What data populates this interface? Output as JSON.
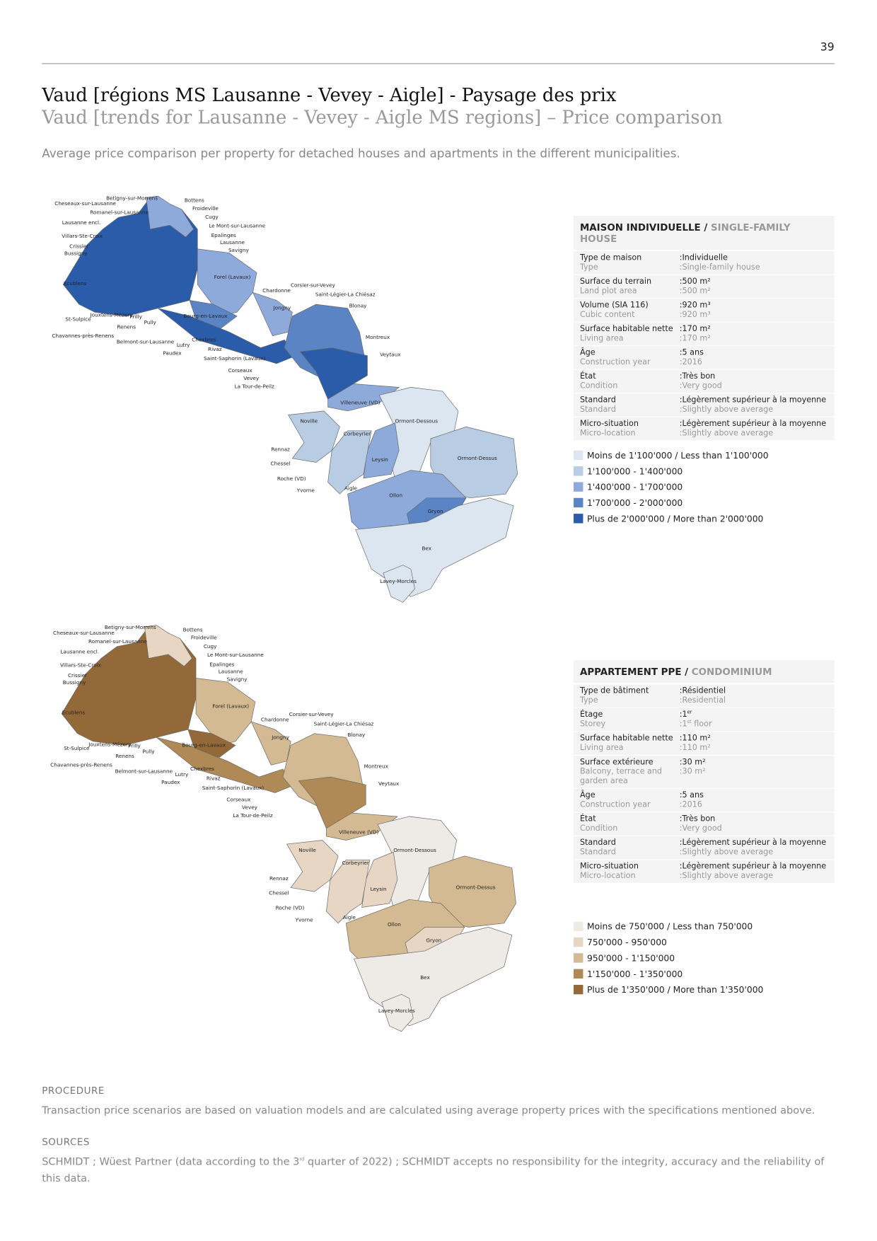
{
  "page_number": "39",
  "title": "Vaud [régions MS Lausanne - Vevey - Aigle] - Paysage des prix",
  "subtitle": "Vaud [trends for Lausanne - Vevey - Aigle MS regions] – Price comparison",
  "intro": "Average price comparison per property for detached houses and apartments in the different municipalities.",
  "municipalities": [
    "Cheseaux-sur-Lausanne",
    "Betigny-sur-Morrens",
    "Bottens",
    "Romanel-sur-Lausanne",
    "Froideville",
    "Cugy",
    "Lausanne encl.",
    "Le Mont-sur-Lausanne",
    "Villars-Ste-Croix",
    "Epalinges",
    "Lausanne",
    "Crissier",
    "Savigny",
    "Bussigny",
    "Forel (Lavaux)",
    "Ecublens",
    "Chardonne",
    "Corsier-sur-Vevey",
    "Saint-Légier-La Chiésaz",
    "Jongny",
    "Blonay",
    "Jouxtens-Mézery",
    "Prilly",
    "St-Sulpice",
    "Pully",
    "Bourg-en-Lavaux",
    "Renens",
    "Montreux",
    "Chavannes-près-Renens",
    "Belmont-sur-Lausanne",
    "Chexbres",
    "Lutry",
    "Rivaz",
    "Paudex",
    "Veytaux",
    "Saint-Saphorin (Lavaux)",
    "Corseaux",
    "Vevey",
    "La Tour-de-Peilz",
    "Villeneuve (VD)",
    "Noville",
    "Ormont-Dessous",
    "Corbeyrier",
    "Rennaz",
    "Leysin",
    "Ormont-Dessus",
    "Chessel",
    "Roche (VD)",
    "Aigle",
    "Yvorne",
    "Ollon",
    "Gryon",
    "Bex",
    "Lavey-Morcles"
  ],
  "maps": [
    {
      "panel": {
        "heading": "MAISON INDIVIDUELLE /",
        "heading_en": "SINGLE-FAMILY HOUSE",
        "rows": [
          {
            "label": "Type de maison",
            "label_en": "Type",
            "value": ":Individuelle",
            "value_en": ":Single-family house"
          },
          {
            "label": "Surface du terrain",
            "label_en": "Land plot area",
            "value": ":500 m²",
            "value_en": ":500 m²"
          },
          {
            "label": "Volume (SIA 116)",
            "label_en": "Cubic content",
            "value": ":920 m³",
            "value_en": ":920 m³"
          },
          {
            "label": "Surface habitable nette",
            "label_en": "Living area",
            "value": ":170 m²",
            "value_en": ":170 m²"
          },
          {
            "label": "Âge",
            "label_en": "Construction year",
            "value": ":5 ans",
            "value_en": ":2016"
          },
          {
            "label": "État",
            "label_en": "Condition",
            "value": ":Très bon",
            "value_en": ":Very good"
          },
          {
            "label": "Standard",
            "label_en": "Standard",
            "value": ":Légèrement supérieur à la moyenne",
            "value_en": ":Slightly above average"
          },
          {
            "label": "Micro-situation",
            "label_en": "Micro-location",
            "value": ":Légèrement supérieur à la moyenne",
            "value_en": ":Slightly above average"
          }
        ]
      },
      "legend": [
        {
          "label": "Moins de 1'100'000 / Less than 1'100'000",
          "color": "#dce6f0"
        },
        {
          "label": "1'100'000 - 1'400'000",
          "color": "#b8cce4"
        },
        {
          "label": "1'400'000 - 1'700'000",
          "color": "#8eaadb"
        },
        {
          "label": "1'700'000 - 2'000'000",
          "color": "#5b84c4"
        },
        {
          "label": "Plus de 2'000'000 / More than 2'000'000",
          "color": "#2a5caa"
        }
      ]
    },
    {
      "panel": {
        "heading": "APPARTEMENT PPE /",
        "heading_en": "CONDOMINIUM",
        "rows": [
          {
            "label": "Type de bâtiment",
            "label_en": "Type",
            "value": ":Résidentiel",
            "value_en": ":Residential"
          },
          {
            "label": "Étage",
            "label_en": "Storey",
            "value": ":1",
            "value_sup": "er",
            "value_en": ":1",
            "value_en_sup": "st",
            "value_en_rest": " floor"
          },
          {
            "label": "Surface habitable nette",
            "label_en": "Living area",
            "value": ":110 m²",
            "value_en": ":110 m²"
          },
          {
            "label": "Surface extérieure",
            "label_en": "Balcony, terrace and garden area",
            "value": ":30 m²",
            "value_en": ":30 m²"
          },
          {
            "label": "Âge",
            "label_en": "Construction year",
            "value": ":5 ans",
            "value_en": ":2016"
          },
          {
            "label": "État",
            "label_en": "Condition",
            "value": ":Très bon",
            "value_en": ":Very good"
          },
          {
            "label": "Standard",
            "label_en": "Standard",
            "value": ":Légèrement supérieur à la moyenne",
            "value_en": ":Slightly above average"
          },
          {
            "label": "Micro-situation",
            "label_en": "Micro-location",
            "value": ":Légèrement supérieur à la moyenne",
            "value_en": ":Slightly above average"
          }
        ]
      },
      "legend": [
        {
          "label": "Moins de 750'000 / Less than 750'000",
          "color": "#eeeae5"
        },
        {
          "label": "750'000 - 950'000",
          "color": "#e7d6c4"
        },
        {
          "label": "950'000 - 1'150'000",
          "color": "#d4ba92"
        },
        {
          "label": "1'150'000 - 1'350'000",
          "color": "#b08a56"
        },
        {
          "label": "Plus de 1'350'000 / More than 1'350'000",
          "color": "#94693a"
        }
      ]
    }
  ],
  "procedure": {
    "heading": "PROCEDURE",
    "text": "Transaction price scenarios are based on valuation models and are calculated using average property prices with the specifications mentioned above."
  },
  "sources": {
    "heading": "SOURCES",
    "text": "SCHMIDT ; Wüest Partner (data according to the 3",
    "sup": "rd",
    "rest": " quarter of 2022) ; SCHMIDT accepts no responsibility for the integrity, accuracy and the reliability of this data."
  }
}
